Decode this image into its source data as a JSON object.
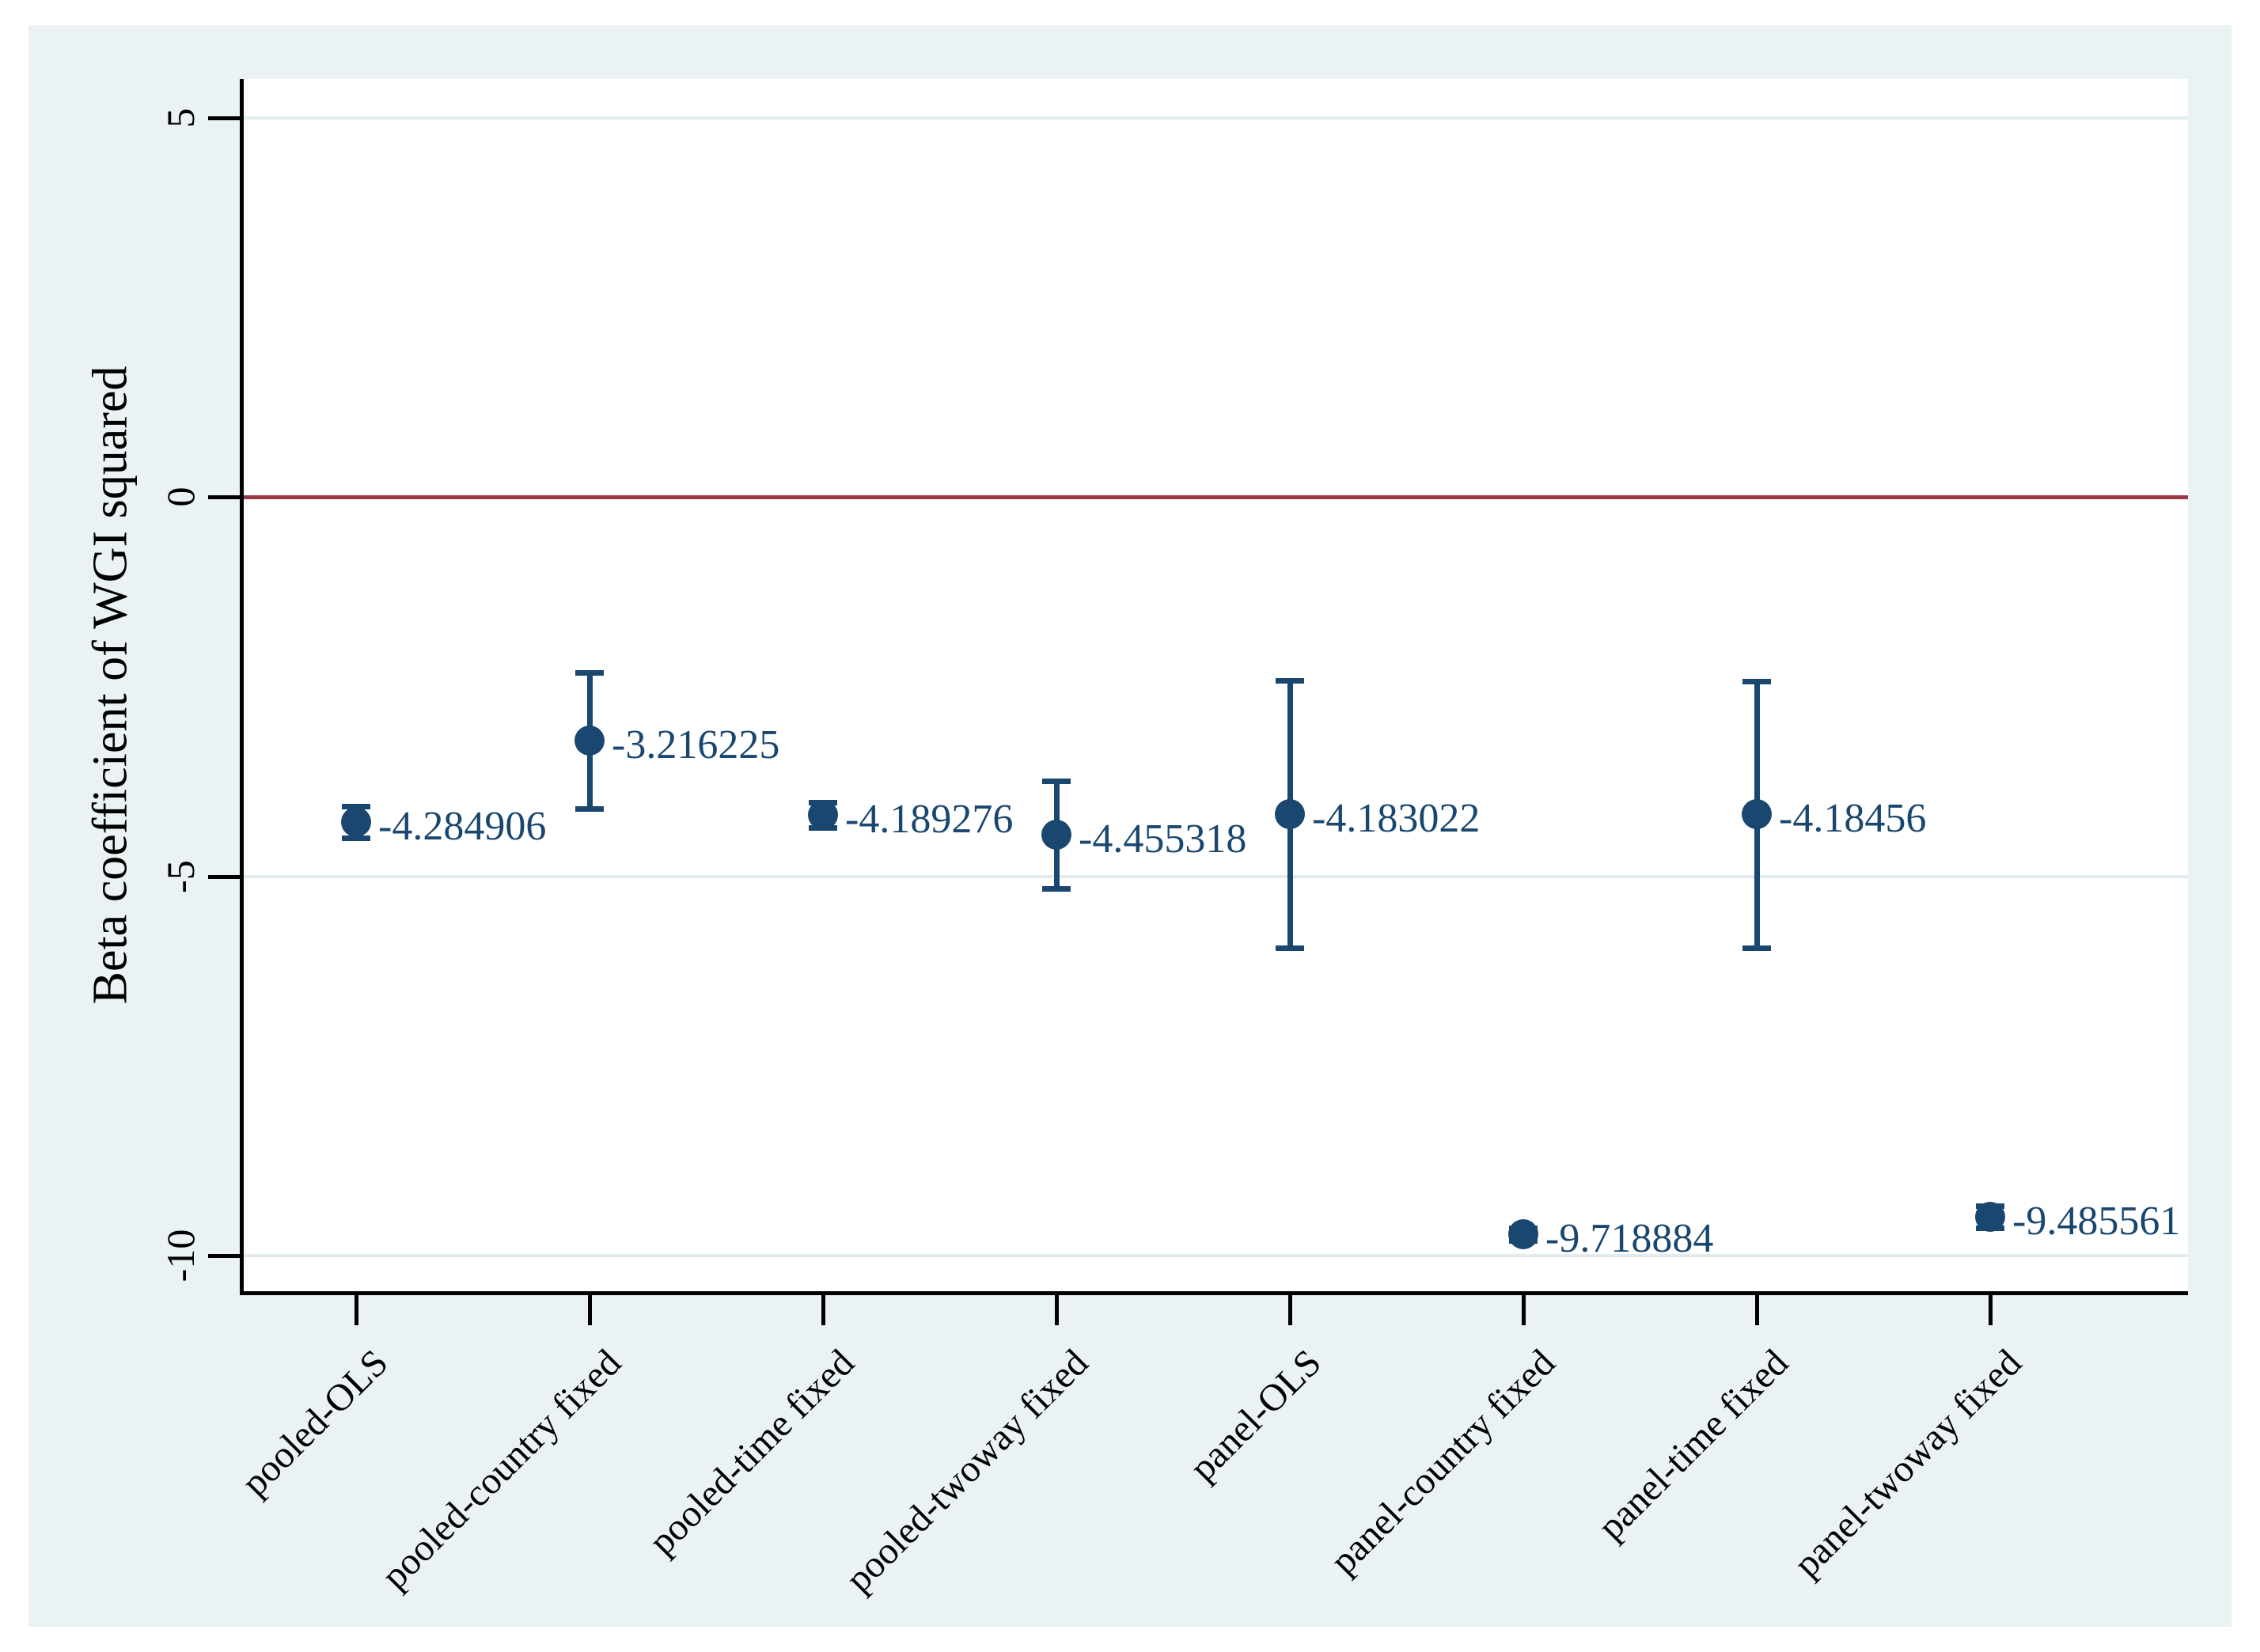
{
  "figure": {
    "y_axis_title": "Beta coefficient of WGI squared"
  },
  "chart_data": {
    "type": "scatter",
    "subtype": "coefficient-plot-with-error-bars",
    "title": "",
    "xlabel": "",
    "ylabel": "Beta coefficient of WGI squared",
    "grid": true,
    "legend_position": "none",
    "ylim": [
      -10.55,
      5.5
    ],
    "reference_line_y": 0,
    "yticks": [
      {
        "value": 5,
        "label": "5"
      },
      {
        "value": 0,
        "label": "0"
      },
      {
        "value": -5,
        "label": "-5"
      },
      {
        "value": -10,
        "label": "-10"
      }
    ],
    "categories": [
      "pooled-OLS",
      "pooled-country fixed",
      "pooled-time fixed",
      "pooled-twoway fixed",
      "panel-OLS",
      "panel-country fixed",
      "panel-time fixed",
      "panel-twoway fixed"
    ],
    "points": [
      {
        "category": "pooled-OLS",
        "estimate": -4.284906,
        "ci_low": -4.49,
        "ci_high": -4.08,
        "value_label": "-4.284906"
      },
      {
        "category": "pooled-country fixed",
        "estimate": -3.216225,
        "ci_low": -4.11,
        "ci_high": -2.32,
        "value_label": "-3.216225"
      },
      {
        "category": "pooled-time fixed",
        "estimate": -4.189276,
        "ci_low": -4.36,
        "ci_high": -4.02,
        "value_label": "-4.189276"
      },
      {
        "category": "pooled-twoway fixed",
        "estimate": -4.455318,
        "ci_low": -5.16,
        "ci_high": -3.74,
        "value_label": "-4.455318"
      },
      {
        "category": "panel-OLS",
        "estimate": -4.183022,
        "ci_low": -5.94,
        "ci_high": -2.42,
        "value_label": "-4.183022"
      },
      {
        "category": "panel-country fixed",
        "estimate": -9.718884,
        "ci_low": -9.8,
        "ci_high": -9.64,
        "value_label": "-9.718884"
      },
      {
        "category": "panel-time fixed",
        "estimate": -4.18456,
        "ci_low": -5.94,
        "ci_high": -2.43,
        "value_label": "-4.18456"
      },
      {
        "category": "panel-twoway fixed",
        "estimate": -9.485561,
        "ci_low": -9.63,
        "ci_high": -9.34,
        "value_label": "-9.485561"
      }
    ],
    "colors": {
      "marker_and_ci": "#1A476F",
      "value_labels": "#1A476F",
      "reference_line": "#9B3A45",
      "canvas_background": "#EAF2F3",
      "plot_background": "#FFFFFF",
      "gridline": "#E2ECEF",
      "axis": "#000000"
    }
  }
}
